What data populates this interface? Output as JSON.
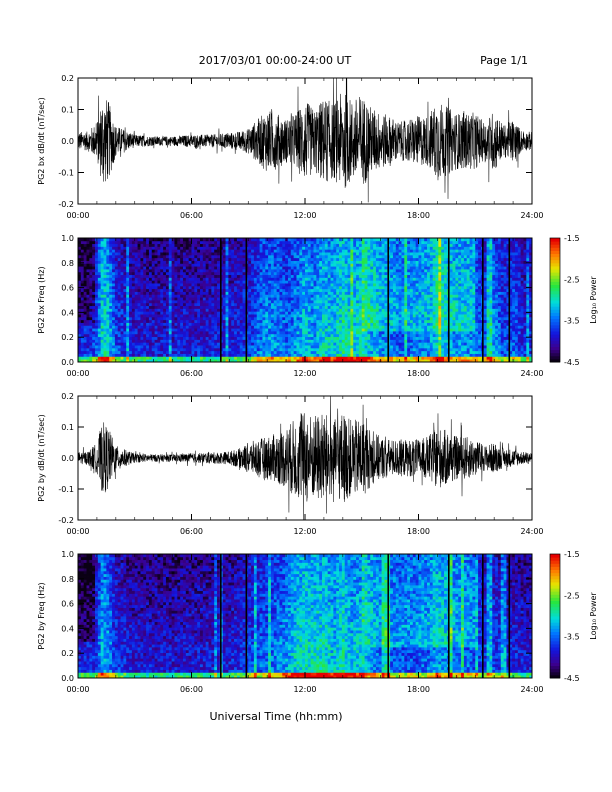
{
  "header": {
    "title": "2017/03/01   00:00-24:00  UT",
    "page": "Page 1/1"
  },
  "xlabel": "Universal Time (hh:mm)",
  "chart_data": [
    {
      "type": "line",
      "id": "bx_wave",
      "ylabel": "PG2 bx dB/dt (nT/sec)",
      "xlim": [
        0,
        24
      ],
      "ylim": [
        -0.2,
        0.2
      ],
      "x_ticks": [
        "00:00",
        "06:00",
        "12:00",
        "18:00",
        "24:00"
      ],
      "y_ticks": [
        "-0.2",
        "-0.1",
        "0.0",
        "0.1",
        "0.2"
      ],
      "series": [
        {
          "x": [
            0.5,
            1.0,
            1.3,
            1.6,
            2.0,
            3.0,
            4.0,
            5.0,
            6.0,
            7.0,
            7.8,
            8.5,
            9.0,
            9.5,
            10.0,
            10.5,
            11.0,
            11.5,
            12.0,
            12.5,
            13.0,
            13.5,
            14.0,
            14.5,
            15.0,
            15.5,
            16.0,
            16.5,
            17.0,
            17.5,
            18.0,
            18.5,
            19.0,
            19.5,
            20.0,
            20.5,
            21.0,
            21.5,
            22.0,
            22.5,
            23.0,
            23.5
          ],
          "amplitude": [
            0.03,
            0.06,
            0.15,
            0.13,
            0.05,
            0.02,
            0.015,
            0.015,
            0.02,
            0.02,
            0.025,
            0.03,
            0.04,
            0.07,
            0.1,
            0.09,
            0.07,
            0.09,
            0.13,
            0.1,
            0.14,
            0.12,
            0.16,
            0.13,
            0.15,
            0.11,
            0.09,
            0.08,
            0.06,
            0.07,
            0.08,
            0.08,
            0.13,
            0.11,
            0.09,
            0.09,
            0.09,
            0.06,
            0.1,
            0.05,
            0.07,
            0.03
          ]
        }
      ]
    },
    {
      "type": "heatmap",
      "id": "bx_spec",
      "ylabel": "PG2 bx Freq (Hz)",
      "xlim": [
        0,
        24
      ],
      "ylim": [
        0,
        1.0
      ],
      "x_ticks": [
        "00:00",
        "06:00",
        "12:00",
        "18:00",
        "24:00"
      ],
      "y_ticks": [
        "0.0",
        "0.2",
        "0.4",
        "0.6",
        "0.8",
        "1.0"
      ],
      "colorbar": {
        "label": "Log₁₀ Power",
        "range": [
          -4.5,
          -1.5
        ],
        "ticks": [
          "-1.5",
          "-2.5",
          "-3.5",
          "-4.5"
        ]
      },
      "gaps_hours": [
        7.55,
        8.9,
        16.4,
        19.6,
        21.4,
        22.8
      ]
    },
    {
      "type": "line",
      "id": "by_wave",
      "ylabel": "PG2 by dB/dt (nT/sec)",
      "xlim": [
        0,
        24
      ],
      "ylim": [
        -0.2,
        0.2
      ],
      "x_ticks": [
        "00:00",
        "06:00",
        "12:00",
        "18:00",
        "24:00"
      ],
      "y_ticks": [
        "-0.2",
        "-0.1",
        "0.0",
        "0.1",
        "0.2"
      ],
      "series": [
        {
          "x": [
            0.5,
            1.0,
            1.3,
            1.6,
            2.0,
            3.0,
            4.0,
            5.0,
            6.0,
            7.0,
            7.8,
            8.5,
            9.0,
            9.5,
            10.0,
            10.5,
            11.0,
            11.5,
            12.0,
            12.5,
            13.0,
            13.5,
            14.0,
            14.5,
            15.0,
            15.5,
            16.0,
            16.5,
            17.0,
            17.5,
            18.0,
            18.5,
            19.0,
            19.5,
            20.0,
            20.5,
            21.0,
            21.5,
            22.0,
            22.5,
            23.0,
            23.5
          ],
          "amplitude": [
            0.02,
            0.05,
            0.12,
            0.1,
            0.04,
            0.015,
            0.012,
            0.012,
            0.015,
            0.018,
            0.02,
            0.03,
            0.05,
            0.06,
            0.07,
            0.08,
            0.1,
            0.13,
            0.15,
            0.14,
            0.15,
            0.12,
            0.15,
            0.12,
            0.13,
            0.09,
            0.07,
            0.06,
            0.06,
            0.06,
            0.06,
            0.07,
            0.1,
            0.09,
            0.07,
            0.07,
            0.06,
            0.04,
            0.05,
            0.03,
            0.03,
            0.02
          ]
        }
      ]
    },
    {
      "type": "heatmap",
      "id": "by_spec",
      "ylabel": "PG2 by Freq (Hz)",
      "xlim": [
        0,
        24
      ],
      "ylim": [
        0,
        1.0
      ],
      "x_ticks": [
        "00:00",
        "06:00",
        "12:00",
        "18:00",
        "24:00"
      ],
      "y_ticks": [
        "0.0",
        "0.2",
        "0.4",
        "0.6",
        "0.8",
        "1.0"
      ],
      "colorbar": {
        "label": "Log₁₀ Power",
        "range": [
          -4.5,
          -1.5
        ],
        "ticks": [
          "-1.5",
          "-2.5",
          "-3.5",
          "-4.5"
        ]
      },
      "gaps_hours": [
        7.55,
        8.9,
        16.4,
        19.6,
        21.4,
        22.8
      ]
    }
  ]
}
